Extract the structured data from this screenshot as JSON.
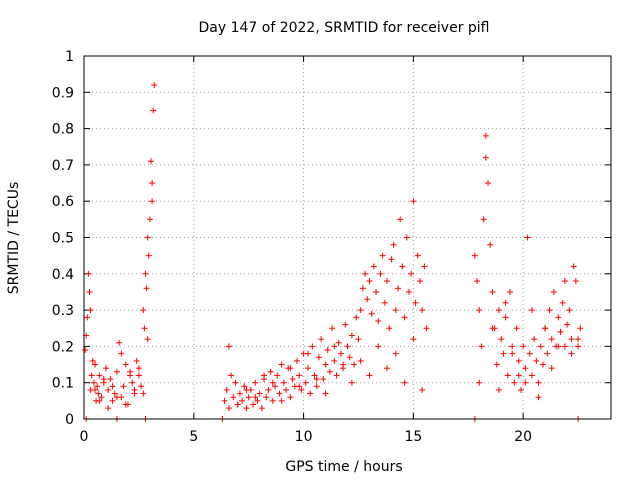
{
  "chart_data": {
    "type": "scatter",
    "title": "Day 147 of 2022, SRMTID for receiver pifl",
    "xlabel": "GPS time / hours",
    "ylabel": "SRMTID / TECUs",
    "xlim": [
      0,
      24
    ],
    "ylim": [
      0,
      1
    ],
    "xticks": [
      0,
      5,
      10,
      15,
      20
    ],
    "xtick_labels": [
      "0",
      "5",
      "10",
      "15",
      "20"
    ],
    "yticks": [
      0,
      0.1,
      0.2,
      0.3,
      0.4,
      0.5,
      0.6,
      0.7,
      0.8,
      0.9,
      1
    ],
    "ytick_labels": [
      "0",
      "0.1",
      "0.2",
      "0.3",
      "0.4",
      "0.5",
      "0.6",
      "0.7",
      "0.8",
      "0.9",
      "1"
    ],
    "grid": true,
    "marker": "+",
    "color": "#ff0000",
    "series": [
      {
        "name": "SRMTID",
        "x": [
          0.05,
          0.1,
          0.15,
          0.2,
          0.25,
          0.3,
          0.35,
          0.4,
          0.45,
          0.5,
          0.55,
          0.6,
          0.65,
          0.7,
          0.8,
          0.9,
          1.0,
          1.1,
          1.2,
          1.3,
          1.4,
          1.5,
          1.6,
          1.7,
          1.8,
          1.9,
          2.0,
          2.1,
          2.2,
          2.3,
          2.4,
          2.5,
          2.6,
          2.7,
          2.75,
          2.8,
          2.85,
          2.9,
          2.95,
          3.0,
          3.05,
          3.1,
          3.15,
          3.2,
          0.3,
          0.5,
          0.7,
          0.9,
          1.1,
          1.3,
          1.5,
          1.7,
          1.9,
          2.1,
          2.3,
          2.5,
          2.7,
          2.9,
          3.1,
          6.4,
          6.5,
          6.6,
          6.7,
          6.8,
          6.9,
          7.0,
          7.1,
          7.2,
          7.3,
          7.4,
          7.5,
          7.6,
          7.7,
          7.8,
          7.9,
          8.0,
          8.1,
          8.2,
          8.3,
          8.4,
          8.5,
          8.6,
          8.7,
          8.8,
          8.9,
          9.0,
          9.1,
          9.2,
          9.3,
          9.4,
          9.5,
          9.6,
          9.7,
          9.8,
          9.9,
          10.0,
          10.1,
          10.2,
          10.3,
          10.4,
          10.5,
          10.6,
          10.7,
          10.8,
          10.9,
          11.0,
          11.1,
          11.2,
          11.3,
          11.4,
          11.5,
          11.6,
          11.7,
          11.8,
          11.9,
          12.0,
          12.1,
          12.2,
          12.3,
          12.4,
          12.5,
          12.6,
          12.7,
          12.8,
          12.9,
          13.0,
          13.1,
          13.2,
          13.3,
          13.4,
          13.5,
          13.6,
          13.7,
          13.8,
          13.9,
          14.0,
          14.1,
          14.2,
          14.3,
          14.4,
          14.5,
          14.6,
          14.7,
          14.8,
          14.9,
          15.0,
          15.1,
          15.2,
          15.3,
          15.4,
          15.5,
          15.6,
          6.6,
          7.0,
          7.4,
          7.8,
          8.2,
          8.6,
          9.0,
          9.4,
          9.8,
          10.2,
          10.6,
          11.0,
          11.4,
          11.8,
          12.2,
          12.6,
          13.0,
          13.4,
          13.8,
          14.2,
          14.6,
          15.0,
          15.4,
          17.8,
          17.9,
          18.0,
          18.1,
          18.2,
          18.3,
          18.4,
          18.5,
          18.6,
          18.7,
          18.8,
          18.9,
          19.0,
          19.1,
          19.2,
          19.3,
          19.4,
          19.5,
          19.6,
          19.7,
          19.8,
          19.9,
          20.0,
          20.1,
          20.2,
          20.3,
          20.4,
          20.5,
          20.6,
          20.7,
          20.8,
          20.9,
          21.0,
          21.1,
          21.2,
          21.3,
          21.4,
          21.5,
          21.6,
          21.7,
          21.8,
          21.9,
          22.0,
          22.1,
          22.2,
          22.3,
          22.4,
          22.5,
          22.6,
          18.0,
          18.3,
          18.6,
          18.9,
          19.2,
          19.5,
          19.8,
          20.1,
          20.4,
          20.7,
          21.0,
          21.3,
          21.6,
          21.9,
          22.2,
          22.5,
          0.1,
          1.5,
          2.8,
          6.3,
          17.8,
          22.5
        ],
        "y": [
          0.19,
          0.23,
          0.28,
          0.4,
          0.35,
          0.3,
          0.12,
          0.16,
          0.1,
          0.08,
          0.05,
          0.09,
          0.07,
          0.12,
          0.06,
          0.1,
          0.14,
          0.08,
          0.11,
          0.05,
          0.07,
          0.13,
          0.21,
          0.06,
          0.09,
          0.15,
          0.04,
          0.13,
          0.1,
          0.07,
          0.16,
          0.12,
          0.09,
          0.3,
          0.25,
          0.4,
          0.36,
          0.5,
          0.45,
          0.55,
          0.71,
          0.65,
          0.85,
          0.92,
          0.08,
          0.15,
          0.05,
          0.11,
          0.03,
          0.09,
          0.06,
          0.18,
          0.04,
          0.12,
          0.08,
          0.14,
          0.07,
          0.22,
          0.6,
          0.05,
          0.08,
          0.03,
          0.12,
          0.06,
          0.1,
          0.04,
          0.07,
          0.05,
          0.09,
          0.03,
          0.06,
          0.08,
          0.04,
          0.1,
          0.05,
          0.07,
          0.03,
          0.11,
          0.06,
          0.08,
          0.13,
          0.05,
          0.09,
          0.12,
          0.07,
          0.15,
          0.1,
          0.08,
          0.14,
          0.06,
          0.11,
          0.09,
          0.16,
          0.12,
          0.08,
          0.18,
          0.1,
          0.14,
          0.07,
          0.2,
          0.12,
          0.09,
          0.17,
          0.22,
          0.11,
          0.15,
          0.19,
          0.13,
          0.25,
          0.16,
          0.12,
          0.21,
          0.18,
          0.14,
          0.26,
          0.2,
          0.17,
          0.23,
          0.15,
          0.28,
          0.22,
          0.3,
          0.36,
          0.4,
          0.33,
          0.38,
          0.29,
          0.42,
          0.35,
          0.27,
          0.4,
          0.45,
          0.32,
          0.38,
          0.25,
          0.44,
          0.48,
          0.3,
          0.36,
          0.55,
          0.42,
          0.28,
          0.5,
          0.35,
          0.4,
          0.6,
          0.32,
          0.45,
          0.38,
          0.3,
          0.42,
          0.25,
          0.2,
          0.04,
          0.08,
          0.06,
          0.12,
          0.1,
          0.05,
          0.14,
          0.09,
          0.18,
          0.11,
          0.07,
          0.2,
          0.15,
          0.1,
          0.16,
          0.12,
          0.2,
          0.14,
          0.18,
          0.1,
          0.22,
          0.08,
          0.45,
          0.38,
          0.3,
          0.2,
          0.55,
          0.72,
          0.65,
          0.48,
          0.35,
          0.25,
          0.15,
          0.3,
          0.22,
          0.18,
          0.28,
          0.12,
          0.35,
          0.2,
          0.1,
          0.25,
          0.16,
          0.08,
          0.2,
          0.14,
          0.5,
          0.18,
          0.12,
          0.22,
          0.16,
          0.1,
          0.2,
          0.15,
          0.25,
          0.18,
          0.3,
          0.22,
          0.35,
          0.2,
          0.28,
          0.24,
          0.32,
          0.2,
          0.26,
          0.3,
          0.22,
          0.42,
          0.38,
          0.2,
          0.25,
          0.1,
          0.78,
          0.25,
          0.08,
          0.32,
          0.18,
          0.12,
          0.1,
          0.3,
          0.06,
          0.25,
          0.14,
          0.2,
          0.38,
          0.18,
          0.22,
          0,
          0,
          0,
          0,
          0,
          0
        ]
      }
    ]
  }
}
